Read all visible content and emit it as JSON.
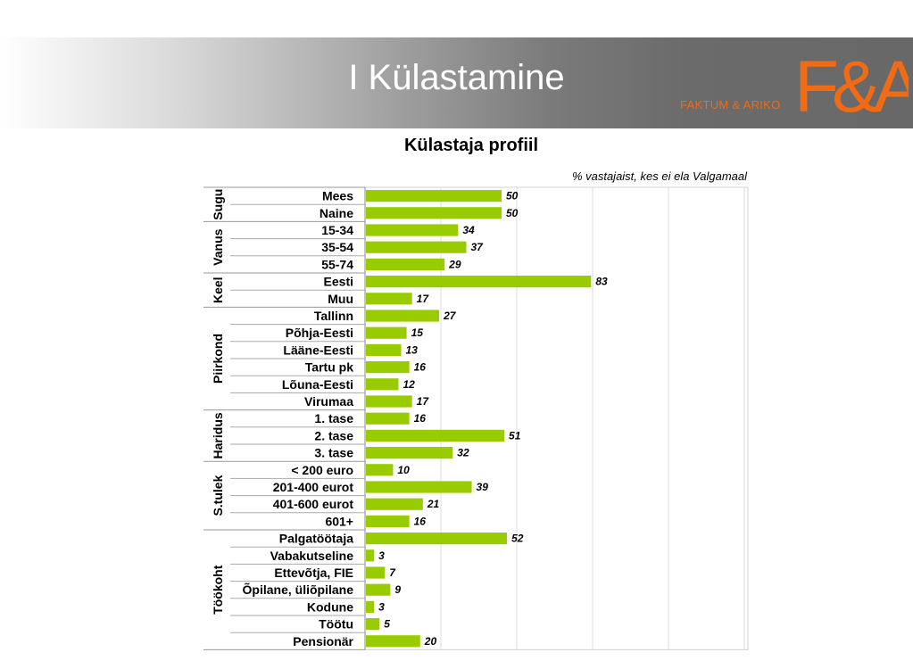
{
  "header": {
    "title": "I Külastamine",
    "brand_text": "FAKTUM & ARIKO",
    "brand_logo_text": "F&A",
    "brand_color": "#f06b14"
  },
  "chart_data": {
    "type": "bar",
    "orientation": "horizontal",
    "title": "Külastaja profiil",
    "subtitle": "% vastajaist, kes ei ela Valgamaal",
    "bar_color": "#99cc00",
    "xlim": [
      0,
      100
    ],
    "grid": true,
    "groups": [
      {
        "name": "Sugu",
        "items": [
          {
            "label": "Mees",
            "value": 50
          },
          {
            "label": "Naine",
            "value": 50
          }
        ]
      },
      {
        "name": "Vanus",
        "items": [
          {
            "label": "15-34",
            "value": 34
          },
          {
            "label": "35-54",
            "value": 37
          },
          {
            "label": "55-74",
            "value": 29
          }
        ]
      },
      {
        "name": "Keel",
        "items": [
          {
            "label": "Eesti",
            "value": 83
          },
          {
            "label": "Muu",
            "value": 17
          }
        ]
      },
      {
        "name": "Piirkond",
        "items": [
          {
            "label": "Tallinn",
            "value": 27
          },
          {
            "label": "Põhja-Eesti",
            "value": 15
          },
          {
            "label": "Lääne-Eesti",
            "value": 13
          },
          {
            "label": "Tartu pk",
            "value": 16
          },
          {
            "label": "Lõuna-Eesti",
            "value": 12
          },
          {
            "label": "Virumaa",
            "value": 17
          }
        ]
      },
      {
        "name": "Haridus",
        "items": [
          {
            "label": "1. tase",
            "value": 16
          },
          {
            "label": "2. tase",
            "value": 51
          },
          {
            "label": "3. tase",
            "value": 32
          }
        ]
      },
      {
        "name": "S.tulek",
        "items": [
          {
            "label": "< 200 euro",
            "value": 10
          },
          {
            "label": "201-400 eurot",
            "value": 39
          },
          {
            "label": "401-600 eurot",
            "value": 21
          },
          {
            "label": "601+",
            "value": 16
          }
        ]
      },
      {
        "name": "Töökoht",
        "items": [
          {
            "label": "Palgatöötaja",
            "value": 52
          },
          {
            "label": "Vabakutseline",
            "value": 3
          },
          {
            "label": "Ettevõtja, FIE",
            "value": 7
          },
          {
            "label": "Õpilane, üliõpilane",
            "value": 9
          },
          {
            "label": "Kodune",
            "value": 3
          },
          {
            "label": "Töötu",
            "value": 5
          },
          {
            "label": "Pensionär",
            "value": 20
          }
        ]
      }
    ]
  }
}
